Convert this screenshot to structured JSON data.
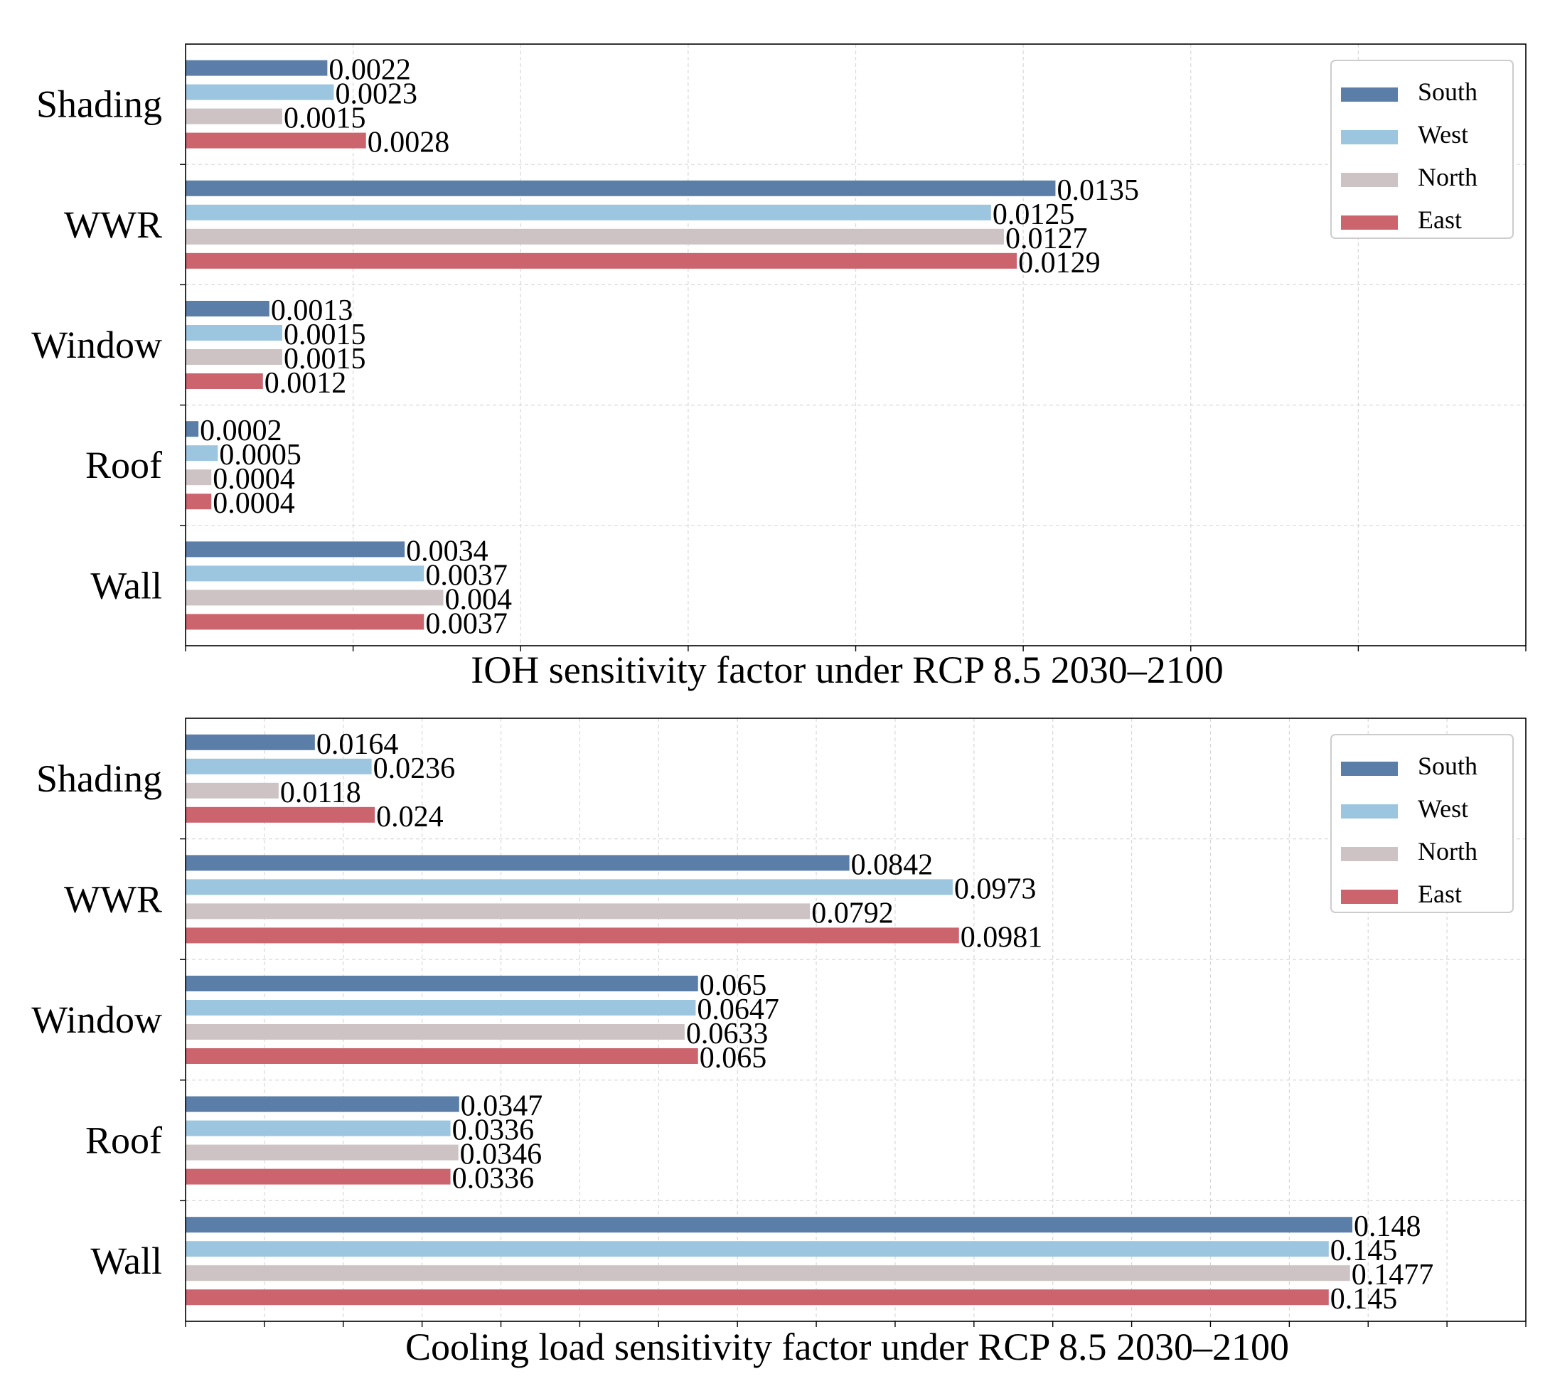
{
  "colors": {
    "South": "#5a7ea8",
    "West": "#9cc5df",
    "North": "#cdc3c4",
    "East": "#cc646e",
    "grid": "#d8d8d8",
    "axis": "#000000"
  },
  "chart_data": [
    {
      "type": "bar",
      "orientation": "horizontal",
      "title": "IOH sensitivity factor under RCP 8.5  2030–2100",
      "xlabel": "IOH sensitivity factor under RCP 8.5  2030–2100",
      "ylabel": "",
      "xlim": [
        0,
        0.0208
      ],
      "grid": true,
      "legend_position": "top-right",
      "categories": [
        "Shading",
        "WWR",
        "Window",
        "Roof",
        "Wall"
      ],
      "series": [
        {
          "name": "South",
          "values": [
            0.0022,
            0.0135,
            0.0013,
            0.0002,
            0.0034
          ],
          "labels": [
            "0.0022",
            "0.0135",
            "0.0013",
            "0.0002",
            "0.0034"
          ]
        },
        {
          "name": "West",
          "values": [
            0.0023,
            0.0125,
            0.0015,
            0.0005,
            0.0037
          ],
          "labels": [
            "0.0023",
            "0.0125",
            "0.0015",
            "0.0005",
            "0.0037"
          ]
        },
        {
          "name": "North",
          "values": [
            0.0015,
            0.0127,
            0.0015,
            0.0004,
            0.004
          ],
          "labels": [
            "0.0015",
            "0.0127",
            "0.0015",
            "0.0004",
            "0.004"
          ]
        },
        {
          "name": "East",
          "values": [
            0.0028,
            0.0129,
            0.0012,
            0.0004,
            0.0037
          ],
          "labels": [
            "0.0028",
            "0.0129",
            "0.0012",
            "0.0004",
            "0.0037"
          ]
        }
      ]
    },
    {
      "type": "bar",
      "orientation": "horizontal",
      "title": "Cooling load sensitivity factor under RCP 8.5  2030–2100",
      "xlabel": "Cooling load sensitivity factor under RCP 8.5  2030–2100",
      "ylabel": "",
      "xlim": [
        0,
        0.17
      ],
      "grid": true,
      "legend_position": "top-right",
      "categories": [
        "Shading",
        "WWR",
        "Window",
        "Roof",
        "Wall"
      ],
      "series": [
        {
          "name": "South",
          "values": [
            0.0164,
            0.0842,
            0.065,
            0.0347,
            0.148
          ],
          "labels": [
            "0.0164",
            "0.0842",
            "0.065",
            "0.0347",
            "0.148"
          ]
        },
        {
          "name": "West",
          "values": [
            0.0236,
            0.0973,
            0.0647,
            0.0336,
            0.145
          ],
          "labels": [
            "0.0236",
            "0.0973",
            "0.0647",
            "0.0336",
            "0.145"
          ]
        },
        {
          "name": "North",
          "values": [
            0.0118,
            0.0792,
            0.0633,
            0.0346,
            0.1477
          ],
          "labels": [
            "0.0118",
            "0.0792",
            "0.0633",
            "0.0346",
            "0.1477"
          ]
        },
        {
          "name": "East",
          "values": [
            0.024,
            0.0981,
            0.065,
            0.0336,
            0.145
          ],
          "labels": [
            "0.024",
            "0.0981",
            "0.065",
            "0.0336",
            "0.145"
          ]
        }
      ]
    }
  ]
}
